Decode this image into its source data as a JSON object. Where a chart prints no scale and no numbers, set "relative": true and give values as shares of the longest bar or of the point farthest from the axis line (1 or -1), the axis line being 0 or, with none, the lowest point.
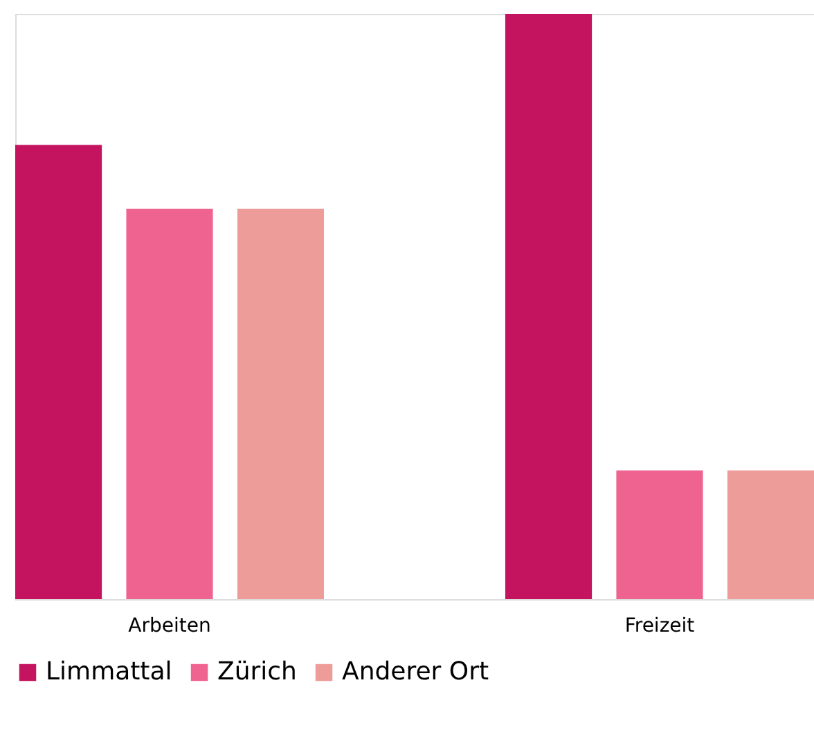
{
  "chart_data": {
    "type": "bar",
    "relative": true,
    "categories": [
      "Arbeiten",
      "Freizeit"
    ],
    "series": [
      {
        "name": "Limmattal",
        "color": "#c4135f",
        "values": [
          0.776,
          1
        ]
      },
      {
        "name": "Zürich",
        "color": "#ef6390",
        "values": [
          0.667,
          0.22
        ]
      },
      {
        "name": "Anderer Ort",
        "color": "#ee9c9a",
        "values": [
          0.667,
          0.22
        ]
      }
    ],
    "legend": "bottom",
    "grid": false
  }
}
